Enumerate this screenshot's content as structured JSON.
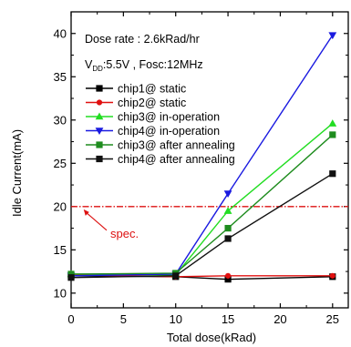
{
  "chart_data": {
    "type": "line",
    "xlabel": "Total dose(kRad)",
    "ylabel": "Idle Current(mA)",
    "xlim": [
      0,
      26.5
    ],
    "ylim": [
      8.3,
      42.5
    ],
    "xticks": [
      0,
      5,
      10,
      15,
      20,
      25
    ],
    "yticks": [
      10,
      15,
      20,
      25,
      30,
      35,
      40
    ],
    "grid": false,
    "legend_placement": "top-left",
    "annotations": {
      "line1": "Dose rate : 2.6kRad/hr",
      "line2_prefix": "V",
      "line2_sub": "DD",
      "line2_suffix": ":5.5V , Fosc:12MHz"
    },
    "spec": {
      "label": "spec.",
      "y": 20.0,
      "color": "#dd1111"
    },
    "series": [
      {
        "name": "chip1@ static",
        "color": "#000000",
        "marker": "square",
        "x": [
          0,
          10,
          15,
          25
        ],
        "y": [
          12.0,
          11.9,
          11.6,
          11.9
        ]
      },
      {
        "name": "chip2@ static",
        "color": "#e01010",
        "marker": "circle",
        "x": [
          0,
          10,
          15,
          25
        ],
        "y": [
          12.1,
          11.9,
          12.0,
          12.0
        ]
      },
      {
        "name": "chip3@ in-operation",
        "color": "#22dd22",
        "marker": "triangle",
        "x": [
          0,
          10,
          15,
          25
        ],
        "y": [
          12.2,
          12.1,
          19.5,
          29.6
        ]
      },
      {
        "name": "chip4@ in-operation",
        "color": "#1a1ae0",
        "marker": "triangle-down",
        "x": [
          0,
          10,
          15,
          25
        ],
        "y": [
          12.0,
          12.2,
          21.5,
          39.8
        ]
      },
      {
        "name": "chip3@ after annealing",
        "color": "#1e8c1e",
        "marker": "square",
        "x": [
          0,
          10,
          15,
          25
        ],
        "y": [
          12.2,
          12.3,
          17.5,
          28.3
        ]
      },
      {
        "name": "chip4@ after annealing",
        "color": "#111111",
        "marker": "square",
        "x": [
          0,
          10,
          15,
          25
        ],
        "y": [
          11.8,
          12.0,
          16.3,
          23.8
        ]
      }
    ]
  }
}
